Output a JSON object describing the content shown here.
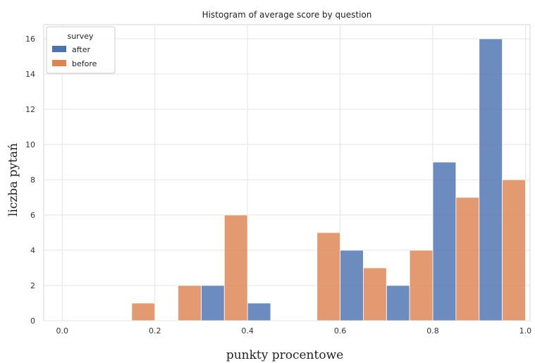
{
  "chart_data": {
    "type": "bar",
    "title": "Histogram of average score by question",
    "xlabel": "punkty procentowe",
    "ylabel": "liczba pytań",
    "xlim": [
      -0.04,
      1.01
    ],
    "ylim": [
      0,
      16.8
    ],
    "xticks": [
      "0.0",
      "0.2",
      "0.4",
      "0.6",
      "0.8",
      "1.0"
    ],
    "xtick_values": [
      0.0,
      0.2,
      0.4,
      0.6,
      0.8,
      1.0
    ],
    "yticks": [
      "0",
      "2",
      "4",
      "6",
      "8",
      "10",
      "12",
      "14",
      "16"
    ],
    "ytick_values": [
      0,
      2,
      4,
      6,
      8,
      10,
      12,
      14,
      16
    ],
    "grid": true,
    "legend": {
      "title": "survey",
      "placement": "top-left"
    },
    "series": [
      {
        "name": "after",
        "color": "#4c72b0",
        "bins": [
          {
            "x0": 0.3,
            "x1": 0.35,
            "value": 2
          },
          {
            "x0": 0.4,
            "x1": 0.45,
            "value": 1
          },
          {
            "x0": 0.6,
            "x1": 0.65,
            "value": 4
          },
          {
            "x0": 0.7,
            "x1": 0.75,
            "value": 2
          },
          {
            "x0": 0.8,
            "x1": 0.85,
            "value": 9
          },
          {
            "x0": 0.9,
            "x1": 0.95,
            "value": 16
          }
        ]
      },
      {
        "name": "before",
        "color": "#dd8452",
        "bins": [
          {
            "x0": 0.15,
            "x1": 0.2,
            "value": 1
          },
          {
            "x0": 0.25,
            "x1": 0.3,
            "value": 2
          },
          {
            "x0": 0.35,
            "x1": 0.4,
            "value": 6
          },
          {
            "x0": 0.55,
            "x1": 0.6,
            "value": 5
          },
          {
            "x0": 0.65,
            "x1": 0.7,
            "value": 3
          },
          {
            "x0": 0.75,
            "x1": 0.8,
            "value": 4
          },
          {
            "x0": 0.85,
            "x1": 0.9,
            "value": 7
          },
          {
            "x0": 0.95,
            "x1": 1.0,
            "value": 8
          }
        ]
      }
    ]
  }
}
